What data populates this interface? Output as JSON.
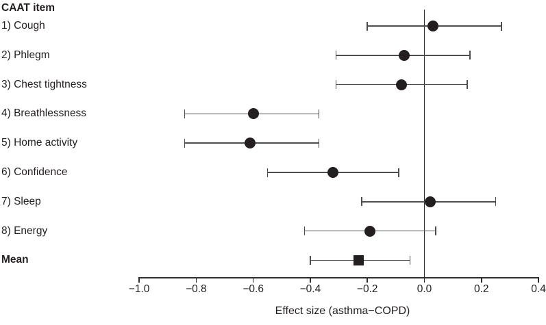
{
  "colors": {
    "text": "#231f20",
    "marker": "#231f20",
    "ci_line": "#4d4d4d",
    "axis": "#2d2d2d"
  },
  "chart_data": {
    "type": "scatter",
    "subtype": "forest-plot",
    "column_header": "CAAT item",
    "xlabel": "Effect size (asthma−COPD)",
    "xlim": [
      -1.0,
      0.4
    ],
    "x_ticks": [
      -1.0,
      -0.8,
      -0.6,
      -0.4,
      -0.2,
      0.0,
      0.2,
      0.4
    ],
    "x_tick_labels": [
      "−1.0",
      "−0.8",
      "−0.6",
      "−0.4",
      "−0.2",
      "0.0",
      "0.2",
      "0.4"
    ],
    "reference_line": 0.0,
    "grid": false,
    "legend": "none",
    "items": [
      {
        "label": "1) Cough",
        "estimate": 0.03,
        "ci_low": -0.2,
        "ci_high": 0.27,
        "marker": "circle",
        "bold": false
      },
      {
        "label": "2) Phlegm",
        "estimate": -0.07,
        "ci_low": -0.31,
        "ci_high": 0.16,
        "marker": "circle",
        "bold": false
      },
      {
        "label": "3) Chest tightness",
        "estimate": -0.08,
        "ci_low": -0.31,
        "ci_high": 0.15,
        "marker": "circle",
        "bold": false
      },
      {
        "label": "4) Breathlessness",
        "estimate": -0.6,
        "ci_low": -0.84,
        "ci_high": -0.37,
        "marker": "circle",
        "bold": false
      },
      {
        "label": "5) Home activity",
        "estimate": -0.61,
        "ci_low": -0.84,
        "ci_high": -0.37,
        "marker": "circle",
        "bold": false
      },
      {
        "label": "6) Confidence",
        "estimate": -0.32,
        "ci_low": -0.55,
        "ci_high": -0.09,
        "marker": "circle",
        "bold": false
      },
      {
        "label": "7) Sleep",
        "estimate": 0.02,
        "ci_low": -0.22,
        "ci_high": 0.25,
        "marker": "circle",
        "bold": false
      },
      {
        "label": "8) Energy",
        "estimate": -0.19,
        "ci_low": -0.42,
        "ci_high": 0.04,
        "marker": "circle",
        "bold": false
      },
      {
        "label": "Mean",
        "estimate": -0.23,
        "ci_low": -0.4,
        "ci_high": -0.05,
        "marker": "square",
        "bold": true
      }
    ]
  }
}
